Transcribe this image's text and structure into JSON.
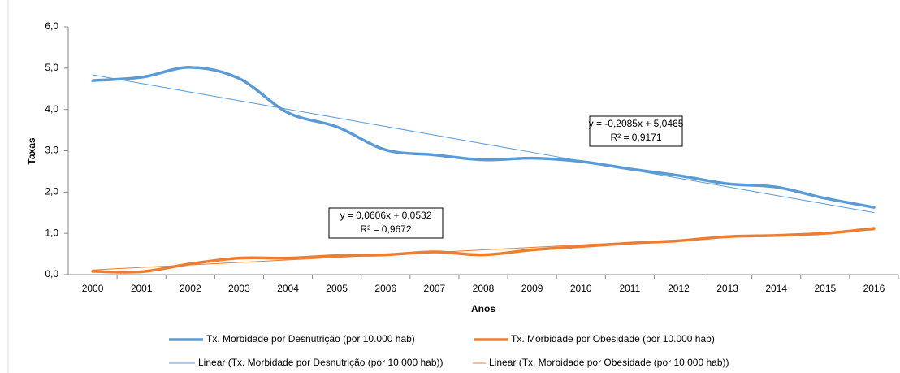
{
  "chart_data": {
    "type": "line",
    "x_label": "Anos",
    "y_label": "Taxas",
    "categories": [
      "2000",
      "2001",
      "2002",
      "2003",
      "2004",
      "2005",
      "2006",
      "2007",
      "2008",
      "2009",
      "2010",
      "2011",
      "2012",
      "2013",
      "2014",
      "2015",
      "2016"
    ],
    "series": [
      {
        "name": "Tx. Morbidade por Desnutrição (por 10.000 hab)",
        "color": "#5b9bd5",
        "trendline": false,
        "values": [
          4.7,
          4.78,
          5.02,
          4.75,
          3.92,
          3.58,
          3.02,
          2.9,
          2.78,
          2.82,
          2.74,
          2.56,
          2.4,
          2.2,
          2.12,
          1.85,
          1.63
        ]
      },
      {
        "name": "Tx. Morbidade por Obesidade (por 10.000 hab)",
        "color": "#ed7d31",
        "trendline": false,
        "values": [
          0.08,
          0.07,
          0.26,
          0.4,
          0.4,
          0.46,
          0.48,
          0.55,
          0.48,
          0.6,
          0.68,
          0.76,
          0.82,
          0.92,
          0.95,
          1.0,
          1.12
        ]
      },
      {
        "name": "Linear (Tx. Morbidade por Desnutrição (por 10.000 hab))",
        "color": "#5b9bd5",
        "trendline": true,
        "values": [
          4.838,
          4.63,
          4.421,
          4.213,
          4.004,
          3.796,
          3.587,
          3.379,
          3.17,
          2.962,
          2.753,
          2.545,
          2.336,
          2.128,
          1.919,
          1.711,
          1.502
        ]
      },
      {
        "name": "Linear (Tx. Morbidade por Obesidade (por 10.000 hab))",
        "color": "#ed7d31",
        "trendline": true,
        "values": [
          0.114,
          0.174,
          0.235,
          0.296,
          0.356,
          0.417,
          0.477,
          0.538,
          0.599,
          0.659,
          0.72,
          0.78,
          0.841,
          0.902,
          0.962,
          1.023,
          1.083
        ]
      }
    ],
    "annotations": [
      {
        "lines": [
          "y = -0,2085x + 5,0465",
          "R² = 0,9171"
        ]
      },
      {
        "lines": [
          "y = 0,0606x + 0,0532",
          "R² = 0,9672"
        ]
      }
    ],
    "ylim": [
      0,
      6
    ],
    "yticks": [
      {
        "value": 0,
        "label": "0,0"
      },
      {
        "value": 1,
        "label": "1,0"
      },
      {
        "value": 2,
        "label": "2,0"
      },
      {
        "value": 3,
        "label": "3,0"
      },
      {
        "value": 4,
        "label": "4,0"
      },
      {
        "value": 5,
        "label": "5,0"
      },
      {
        "value": 6,
        "label": "6,0"
      }
    ],
    "grid": false,
    "legend": "bottom"
  }
}
